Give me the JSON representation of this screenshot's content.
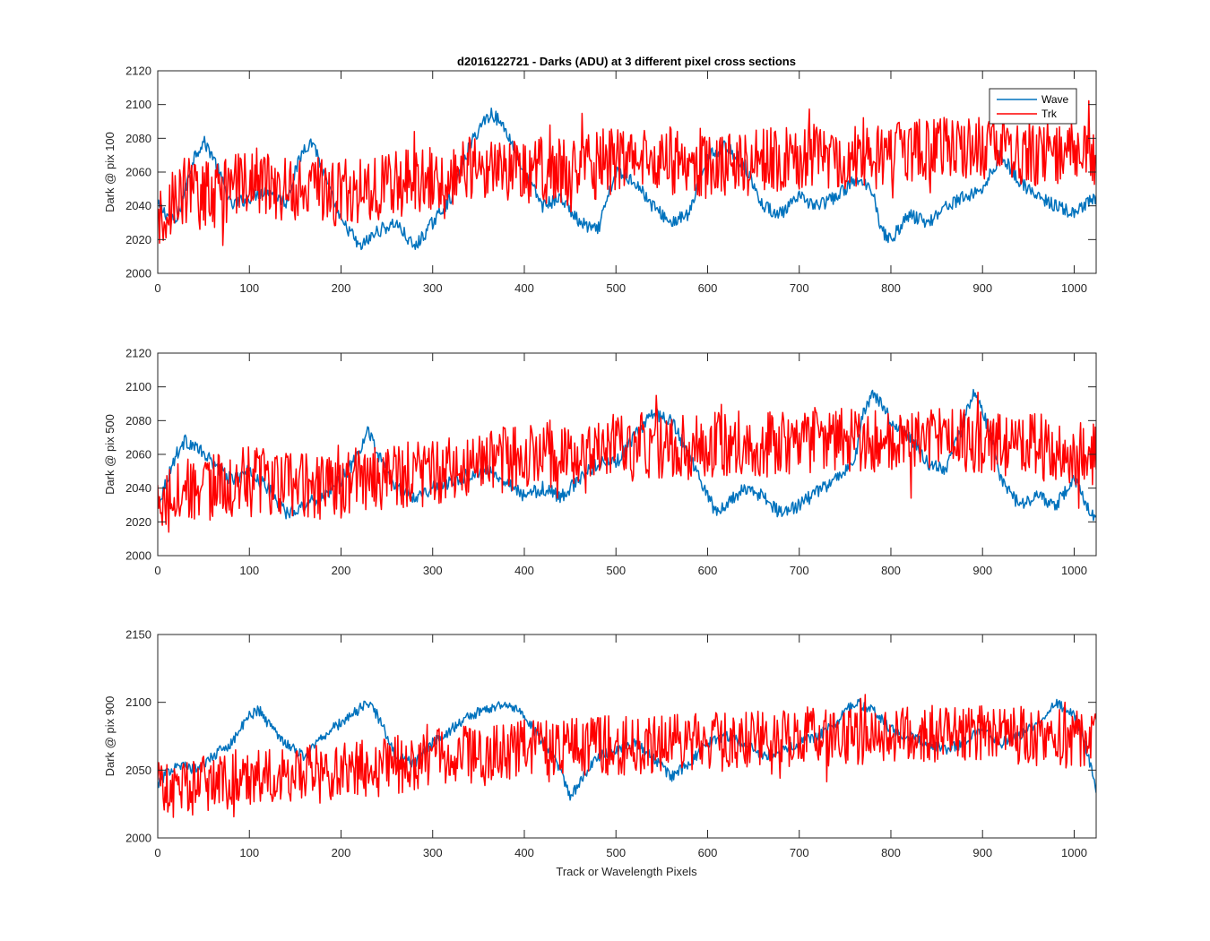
{
  "figure": {
    "title": "d2016122721 - Darks (ADU) at 3 different pixel cross sections",
    "xlabel": "Track or Wavelength Pixels"
  },
  "colors": {
    "wave": "#0072BD",
    "trk": "#FF0000",
    "axis": "#262626"
  },
  "chart_data": [
    {
      "type": "line",
      "ylabel": "Dark @ pix 100",
      "xlim": [
        0,
        1024
      ],
      "ylim": [
        2000,
        2120
      ],
      "xticks": [
        0,
        100,
        200,
        300,
        400,
        500,
        600,
        700,
        800,
        900,
        1000
      ],
      "yticks": [
        2000,
        2020,
        2040,
        2060,
        2080,
        2100,
        2120
      ],
      "legend": {
        "position": "top-right",
        "entries": [
          "Wave",
          "Trk"
        ]
      },
      "series": [
        {
          "name": "Wave",
          "color": "#0072BD",
          "points": [
            [
              0,
              2040
            ],
            [
              20,
              2030
            ],
            [
              40,
              2070
            ],
            [
              50,
              2078
            ],
            [
              60,
              2070
            ],
            [
              80,
              2040
            ],
            [
              100,
              2045
            ],
            [
              120,
              2050
            ],
            [
              140,
              2042
            ],
            [
              150,
              2060
            ],
            [
              160,
              2075
            ],
            [
              170,
              2078
            ],
            [
              180,
              2060
            ],
            [
              200,
              2030
            ],
            [
              210,
              2025
            ],
            [
              220,
              2015
            ],
            [
              240,
              2025
            ],
            [
              260,
              2030
            ],
            [
              280,
              2015
            ],
            [
              300,
              2030
            ],
            [
              320,
              2045
            ],
            [
              340,
              2075
            ],
            [
              355,
              2090
            ],
            [
              365,
              2095
            ],
            [
              380,
              2085
            ],
            [
              400,
              2060
            ],
            [
              420,
              2040
            ],
            [
              440,
              2045
            ],
            [
              460,
              2030
            ],
            [
              480,
              2025
            ],
            [
              500,
              2060
            ],
            [
              520,
              2055
            ],
            [
              540,
              2040
            ],
            [
              560,
              2030
            ],
            [
              580,
              2035
            ],
            [
              600,
              2070
            ],
            [
              620,
              2075
            ],
            [
              640,
              2065
            ],
            [
              660,
              2040
            ],
            [
              680,
              2035
            ],
            [
              700,
              2045
            ],
            [
              720,
              2040
            ],
            [
              740,
              2045
            ],
            [
              760,
              2055
            ],
            [
              780,
              2050
            ],
            [
              790,
              2025
            ],
            [
              800,
              2020
            ],
            [
              820,
              2035
            ],
            [
              840,
              2030
            ],
            [
              860,
              2040
            ],
            [
              880,
              2045
            ],
            [
              900,
              2050
            ],
            [
              920,
              2070
            ],
            [
              940,
              2055
            ],
            [
              960,
              2045
            ],
            [
              980,
              2040
            ],
            [
              1000,
              2035
            ],
            [
              1024,
              2045
            ]
          ]
        },
        {
          "name": "Trk",
          "color": "#FF0000",
          "points": [
            [
              0,
              2030
            ],
            [
              30,
              2050
            ],
            [
              60,
              2045
            ],
            [
              100,
              2055
            ],
            [
              150,
              2050
            ],
            [
              200,
              2048
            ],
            [
              250,
              2052
            ],
            [
              300,
              2055
            ],
            [
              350,
              2065
            ],
            [
              400,
              2060
            ],
            [
              450,
              2062
            ],
            [
              500,
              2065
            ],
            [
              550,
              2068
            ],
            [
              600,
              2062
            ],
            [
              650,
              2066
            ],
            [
              700,
              2068
            ],
            [
              750,
              2070
            ],
            [
              800,
              2070
            ],
            [
              850,
              2072
            ],
            [
              900,
              2075
            ],
            [
              950,
              2072
            ],
            [
              1000,
              2070
            ],
            [
              1024,
              2068
            ]
          ]
        }
      ]
    },
    {
      "type": "line",
      "ylabel": "Dark @ pix 500",
      "xlim": [
        0,
        1024
      ],
      "ylim": [
        2000,
        2120
      ],
      "xticks": [
        0,
        100,
        200,
        300,
        400,
        500,
        600,
        700,
        800,
        900,
        1000
      ],
      "yticks": [
        2000,
        2020,
        2040,
        2060,
        2080,
        2100,
        2120
      ],
      "series": [
        {
          "name": "Wave",
          "color": "#0072BD",
          "points": [
            [
              0,
              2030
            ],
            [
              20,
              2060
            ],
            [
              30,
              2068
            ],
            [
              40,
              2065
            ],
            [
              60,
              2055
            ],
            [
              80,
              2045
            ],
            [
              100,
              2050
            ],
            [
              120,
              2040
            ],
            [
              140,
              2025
            ],
            [
              160,
              2030
            ],
            [
              180,
              2035
            ],
            [
              200,
              2045
            ],
            [
              220,
              2060
            ],
            [
              230,
              2075
            ],
            [
              240,
              2060
            ],
            [
              260,
              2040
            ],
            [
              280,
              2035
            ],
            [
              300,
              2040
            ],
            [
              340,
              2048
            ],
            [
              360,
              2050
            ],
            [
              380,
              2045
            ],
            [
              400,
              2035
            ],
            [
              420,
              2040
            ],
            [
              440,
              2035
            ],
            [
              460,
              2045
            ],
            [
              480,
              2055
            ],
            [
              500,
              2055
            ],
            [
              520,
              2070
            ],
            [
              540,
              2085
            ],
            [
              560,
              2080
            ],
            [
              580,
              2060
            ],
            [
              600,
              2035
            ],
            [
              610,
              2025
            ],
            [
              620,
              2030
            ],
            [
              640,
              2040
            ],
            [
              660,
              2035
            ],
            [
              680,
              2025
            ],
            [
              700,
              2030
            ],
            [
              720,
              2038
            ],
            [
              740,
              2045
            ],
            [
              760,
              2055
            ],
            [
              770,
              2085
            ],
            [
              780,
              2095
            ],
            [
              790,
              2090
            ],
            [
              800,
              2080
            ],
            [
              820,
              2070
            ],
            [
              840,
              2055
            ],
            [
              860,
              2050
            ],
            [
              880,
              2080
            ],
            [
              890,
              2098
            ],
            [
              900,
              2085
            ],
            [
              910,
              2070
            ],
            [
              920,
              2045
            ],
            [
              940,
              2030
            ],
            [
              960,
              2035
            ],
            [
              980,
              2030
            ],
            [
              1000,
              2045
            ],
            [
              1024,
              2020
            ]
          ]
        },
        {
          "name": "Trk",
          "color": "#FF0000",
          "points": [
            [
              0,
              2035
            ],
            [
              50,
              2040
            ],
            [
              100,
              2045
            ],
            [
              150,
              2040
            ],
            [
              200,
              2042
            ],
            [
              250,
              2048
            ],
            [
              300,
              2048
            ],
            [
              350,
              2055
            ],
            [
              400,
              2058
            ],
            [
              450,
              2062
            ],
            [
              500,
              2065
            ],
            [
              550,
              2065
            ],
            [
              600,
              2065
            ],
            [
              650,
              2066
            ],
            [
              700,
              2068
            ],
            [
              750,
              2068
            ],
            [
              800,
              2068
            ],
            [
              850,
              2070
            ],
            [
              900,
              2068
            ],
            [
              950,
              2065
            ],
            [
              1000,
              2062
            ],
            [
              1024,
              2060
            ]
          ]
        }
      ]
    },
    {
      "type": "line",
      "ylabel": "Dark @ pix 900",
      "xlim": [
        0,
        1024
      ],
      "ylim": [
        2000,
        2150
      ],
      "xticks": [
        0,
        100,
        200,
        300,
        400,
        500,
        600,
        700,
        800,
        900,
        1000
      ],
      "yticks": [
        2000,
        2050,
        2100,
        2150
      ],
      "series": [
        {
          "name": "Wave",
          "color": "#0072BD",
          "points": [
            [
              0,
              2040
            ],
            [
              20,
              2055
            ],
            [
              40,
              2050
            ],
            [
              60,
              2060
            ],
            [
              80,
              2070
            ],
            [
              100,
              2090
            ],
            [
              110,
              2095
            ],
            [
              120,
              2085
            ],
            [
              140,
              2070
            ],
            [
              160,
              2060
            ],
            [
              180,
              2075
            ],
            [
              200,
              2085
            ],
            [
              220,
              2095
            ],
            [
              230,
              2100
            ],
            [
              240,
              2090
            ],
            [
              260,
              2060
            ],
            [
              280,
              2055
            ],
            [
              300,
              2070
            ],
            [
              320,
              2080
            ],
            [
              340,
              2090
            ],
            [
              360,
              2095
            ],
            [
              380,
              2100
            ],
            [
              400,
              2090
            ],
            [
              420,
              2070
            ],
            [
              440,
              2050
            ],
            [
              450,
              2030
            ],
            [
              460,
              2040
            ],
            [
              480,
              2060
            ],
            [
              500,
              2065
            ],
            [
              520,
              2070
            ],
            [
              540,
              2060
            ],
            [
              560,
              2045
            ],
            [
              580,
              2055
            ],
            [
              600,
              2070
            ],
            [
              620,
              2075
            ],
            [
              640,
              2070
            ],
            [
              660,
              2060
            ],
            [
              680,
              2065
            ],
            [
              700,
              2070
            ],
            [
              720,
              2075
            ],
            [
              740,
              2085
            ],
            [
              760,
              2100
            ],
            [
              780,
              2095
            ],
            [
              800,
              2080
            ],
            [
              820,
              2075
            ],
            [
              840,
              2070
            ],
            [
              860,
              2065
            ],
            [
              880,
              2070
            ],
            [
              900,
              2080
            ],
            [
              920,
              2070
            ],
            [
              940,
              2075
            ],
            [
              960,
              2085
            ],
            [
              980,
              2100
            ],
            [
              1000,
              2090
            ],
            [
              1010,
              2075
            ],
            [
              1024,
              2035
            ]
          ]
        },
        {
          "name": "Trk",
          "color": "#FF0000",
          "points": [
            [
              0,
              2035
            ],
            [
              50,
              2040
            ],
            [
              100,
              2045
            ],
            [
              150,
              2045
            ],
            [
              200,
              2050
            ],
            [
              250,
              2052
            ],
            [
              300,
              2060
            ],
            [
              350,
              2062
            ],
            [
              400,
              2065
            ],
            [
              450,
              2068
            ],
            [
              500,
              2068
            ],
            [
              550,
              2070
            ],
            [
              600,
              2070
            ],
            [
              650,
              2072
            ],
            [
              700,
              2075
            ],
            [
              750,
              2075
            ],
            [
              800,
              2078
            ],
            [
              850,
              2078
            ],
            [
              900,
              2078
            ],
            [
              950,
              2075
            ],
            [
              1000,
              2072
            ],
            [
              1024,
              2070
            ]
          ]
        }
      ]
    }
  ]
}
